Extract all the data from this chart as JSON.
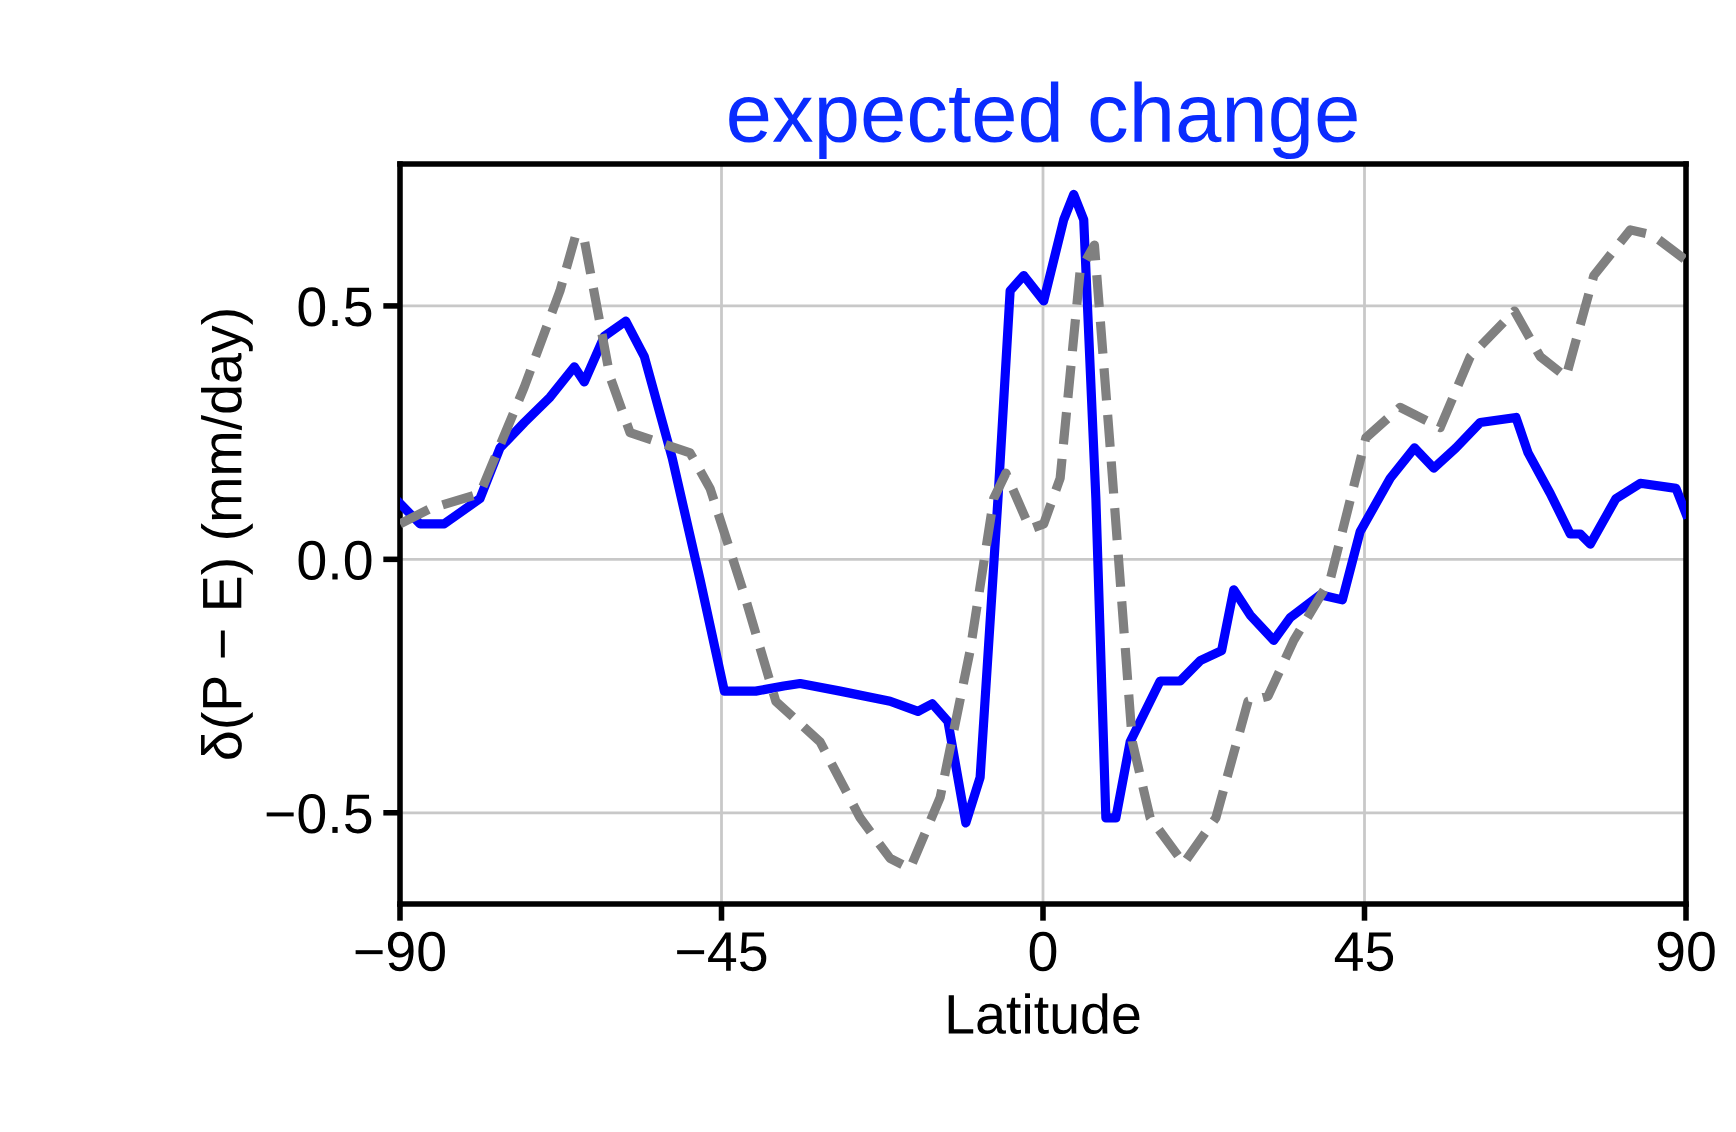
{
  "chart_data": {
    "type": "line",
    "title": "expected change",
    "xlabel": "Latitude",
    "ylabel": "δ(P − E) (mm/day)",
    "xlim": [
      -90,
      90
    ],
    "ylim": [
      -0.68,
      0.78
    ],
    "xticks": [
      {
        "value": -90,
        "label": "−90"
      },
      {
        "value": -45,
        "label": "−45"
      },
      0,
      45,
      90
    ],
    "yticks": [
      {
        "value": -0.5,
        "label": "−0.5"
      },
      {
        "value": 0,
        "label": "0.0"
      },
      {
        "value": 0.5,
        "label": "0.5"
      }
    ],
    "grid": true,
    "legend": false,
    "series": [
      {
        "color": "#0000ff",
        "line_style": "solid",
        "x": [
          -90,
          -87.2,
          -83.8,
          -78.8,
          -76,
          -72.6,
          -69,
          -65.6,
          -64.2,
          -61.4,
          -58.4,
          -55.8,
          -51.9,
          -48,
          -44.6,
          -40.2,
          -36.3,
          -34,
          -28.4,
          -21.4,
          -17.5,
          -15.5,
          -13.3,
          -10.8,
          -8.8,
          -6.3,
          -4.6,
          -2.7,
          0.1,
          2.9,
          4.3,
          5.7,
          7.4,
          8.8,
          10.2,
          12.2,
          16.4,
          19.2,
          22,
          25,
          26.7,
          29,
          32.3,
          34.6,
          38.8,
          41.9,
          44.4,
          48.6,
          52,
          54.7,
          57.8,
          61.2,
          66.2,
          67.9,
          71,
          73.8,
          75.2,
          76.6,
          80.2,
          83.6,
          88.6,
          90
        ],
        "values": [
          0.11,
          0.07,
          0.07,
          0.12,
          0.22,
          0.27,
          0.32,
          0.38,
          0.35,
          0.44,
          0.47,
          0.4,
          0.2,
          -0.04,
          -0.26,
          -0.26,
          -0.25,
          -0.245,
          -0.26,
          -0.28,
          -0.3,
          -0.285,
          -0.32,
          -0.52,
          -0.43,
          0.12,
          0.53,
          0.56,
          0.51,
          0.67,
          0.72,
          0.67,
          0.12,
          -0.51,
          -0.51,
          -0.36,
          -0.24,
          -0.24,
          -0.2,
          -0.18,
          -0.06,
          -0.11,
          -0.16,
          -0.115,
          -0.07,
          -0.08,
          0.055,
          0.16,
          0.22,
          0.18,
          0.22,
          0.27,
          0.28,
          0.21,
          0.13,
          0.05,
          0.05,
          0.03,
          0.12,
          0.15,
          0.14,
          0.09
        ]
      },
      {
        "color": "#808080",
        "line_style": "dashed",
        "x": [
          -90,
          -85.8,
          -78.8,
          -72.6,
          -67.6,
          -65.4,
          -64.2,
          -60.6,
          -57.8,
          -53.6,
          -49.4,
          -46.6,
          -41.8,
          -37.4,
          -31.2,
          -25.6,
          -21.4,
          -18.6,
          -14.4,
          -10.2,
          -6.9,
          -5.2,
          -1.8,
          0.1,
          2.4,
          5.2,
          7.2,
          9.3,
          12.5,
          15,
          19.7,
          24.2,
          28.7,
          31.5,
          35.1,
          40.2,
          45.2,
          50,
          55.6,
          59.8,
          66,
          69.6,
          73.2,
          77.1,
          82.2,
          85.3,
          90
        ],
        "values": [
          0.07,
          0.1,
          0.13,
          0.34,
          0.53,
          0.64,
          0.63,
          0.36,
          0.25,
          0.23,
          0.21,
          0.14,
          -0.07,
          -0.28,
          -0.36,
          -0.51,
          -0.59,
          -0.61,
          -0.47,
          -0.18,
          0.12,
          0.17,
          0.06,
          0.07,
          0.16,
          0.57,
          0.62,
          0.24,
          -0.36,
          -0.51,
          -0.6,
          -0.51,
          -0.28,
          -0.27,
          -0.16,
          -0.04,
          0.24,
          0.3,
          0.26,
          0.4,
          0.49,
          0.4,
          0.36,
          0.56,
          0.65,
          0.64,
          0.59
        ]
      }
    ]
  }
}
